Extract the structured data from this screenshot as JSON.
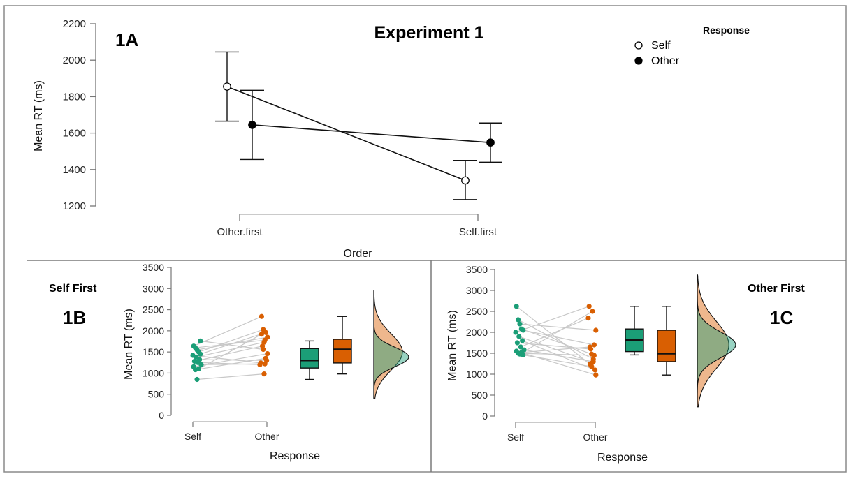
{
  "colors": {
    "self": "#1b9e77",
    "other": "#d95f02",
    "line": "#111111",
    "pair": "#c8c8c8",
    "frame": "#7a7a7a"
  },
  "chart_data": [
    {
      "panel": "1A",
      "type": "line",
      "title": "Experiment 1",
      "xlabel": "Order",
      "ylabel": "Mean RT (ms)",
      "categories": [
        "Other.first",
        "Self.first"
      ],
      "yticks": [
        1200,
        1400,
        1600,
        1800,
        2000,
        2200
      ],
      "ylim": [
        1200,
        2200
      ],
      "legend": {
        "title": "Response",
        "position": "top-right"
      },
      "series": [
        {
          "name": "Self",
          "marker": "open-circle",
          "values": [
            1855,
            1340
          ],
          "err_low": [
            1665,
            1235
          ],
          "err_high": [
            2045,
            1450
          ]
        },
        {
          "name": "Other",
          "marker": "filled-circle",
          "values": [
            1645,
            1548
          ],
          "err_low": [
            1455,
            1440
          ],
          "err_high": [
            1835,
            1655
          ]
        }
      ]
    },
    {
      "panel": "1B",
      "type": "scatter",
      "title": "Self First",
      "xlabel": "Response",
      "ylabel": "Mean RT (ms)",
      "categories": [
        "Self",
        "Other"
      ],
      "yticks": [
        0,
        500,
        1000,
        1500,
        2000,
        2500,
        3000,
        3500
      ],
      "ylim": [
        0,
        3500
      ],
      "paired_points": {
        "self": [
          1640,
          1600,
          1550,
          1500,
          1450,
          1420,
          1380,
          1320,
          1280,
          1250,
          1200,
          1150,
          1100,
          1080,
          850,
          1760
        ],
        "other": [
          2340,
          1780,
          1850,
          2030,
          1960,
          1240,
          1730,
          1300,
          1640,
          1200,
          1220,
          1460,
          1920,
          1350,
          980,
          1560
        ]
      },
      "boxplots": [
        {
          "name": "Self",
          "min": 850,
          "q1": 1120,
          "median": 1300,
          "q3": 1580,
          "max": 1760
        },
        {
          "name": "Other",
          "min": 980,
          "q1": 1240,
          "median": 1560,
          "q3": 1800,
          "max": 2340
        }
      ],
      "density": {
        "range": [
          400,
          2950
        ],
        "self": {
          "peak": 1380,
          "width": 230
        },
        "other": {
          "peak": 1500,
          "width": 430
        }
      }
    },
    {
      "panel": "1C",
      "type": "scatter",
      "title": "Other First",
      "xlabel": "Response",
      "ylabel": "Mean RT (ms)",
      "categories": [
        "Self",
        "Other"
      ],
      "yticks": [
        0,
        500,
        1000,
        1500,
        2000,
        2500,
        3000,
        3500
      ],
      "ylim": [
        0,
        3500
      ],
      "paired_points": {
        "self": [
          2620,
          2300,
          2200,
          2080,
          2050,
          2000,
          1900,
          1800,
          1750,
          1650,
          1580,
          1550,
          1520,
          1500,
          1480,
          1460
        ],
        "other": [
          1240,
          1360,
          2050,
          1480,
          1700,
          2620,
          1280,
          1100,
          1600,
          2340,
          1300,
          980,
          1650,
          1450,
          2500,
          1180
        ]
      },
      "boxplots": [
        {
          "name": "Self",
          "min": 1460,
          "q1": 1540,
          "median": 1820,
          "q3": 2080,
          "max": 2620
        },
        {
          "name": "Other",
          "min": 980,
          "q1": 1300,
          "median": 1490,
          "q3": 2050,
          "max": 2620
        }
      ],
      "density": {
        "range": [
          220,
          3370
        ],
        "self": {
          "peak": 1700,
          "width": 310
        },
        "other": {
          "peak": 1700,
          "width": 560
        }
      }
    }
  ]
}
